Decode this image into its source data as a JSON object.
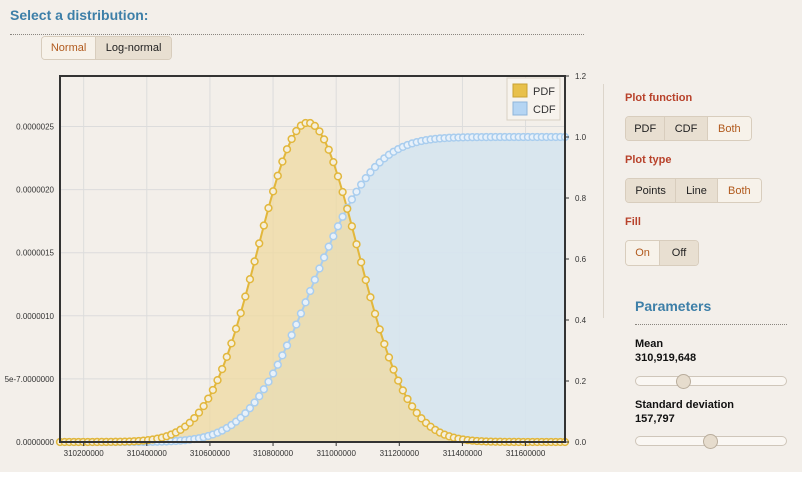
{
  "header": {
    "title": "Select a distribution:"
  },
  "distribution_tabs": [
    {
      "label": "Normal",
      "active": false
    },
    {
      "label": "Log-normal",
      "active": true
    }
  ],
  "controls": {
    "plot_function": {
      "label": "Plot function",
      "options": [
        {
          "label": "PDF",
          "active": true
        },
        {
          "label": "CDF",
          "active": true
        },
        {
          "label": "Both",
          "active": false
        }
      ]
    },
    "plot_type": {
      "label": "Plot type",
      "options": [
        {
          "label": "Points",
          "active": true
        },
        {
          "label": "Line",
          "active": true
        },
        {
          "label": "Both",
          "active": false
        }
      ]
    },
    "fill": {
      "label": "Fill",
      "options": [
        {
          "label": "On",
          "active": false
        },
        {
          "label": "Off",
          "active": true
        }
      ]
    }
  },
  "parameters": {
    "title": "Parameters",
    "mean": {
      "label": "Mean",
      "value_text": "310,919,648",
      "slider_fraction": 0.31
    },
    "std": {
      "label": "Standard deviation",
      "value_text": "157,797",
      "slider_fraction": 0.49
    }
  },
  "colors": {
    "pdf_line": "#e2b73c",
    "pdf_fill": "#efd9a0",
    "cdf_line": "#a9cdee",
    "cdf_fill": "#d6e4ee",
    "marker_fill": "#f5efdc",
    "cdf_marker_fill": "#e8f1fa",
    "axis": "#333333",
    "grid": "#dcdcdc"
  },
  "chart_data": {
    "type": "area",
    "title": "",
    "x_ticks": [
      310200000,
      310400000,
      310600000,
      310800000,
      311000000,
      311200000,
      311400000,
      311600000
    ],
    "x_tick_labels": [
      "310200000",
      "310400000",
      "310600000",
      "310800000",
      "311000000",
      "311200000",
      "311400000",
      "311600000"
    ],
    "xlim": [
      310125000,
      311725000
    ],
    "y_left": {
      "ticks": [
        0,
        5e-07,
        1e-06,
        1.5e-06,
        2e-06,
        2.5e-06
      ],
      "tick_labels": [
        "0.0000000",
        "5e-7.0000000",
        "0.0000010",
        "0.0000015",
        "0.0000020",
        "0.0000025"
      ],
      "lim": [
        0,
        2.9e-06
      ]
    },
    "y_right": {
      "ticks": [
        0,
        0.2,
        0.4,
        0.6,
        0.8,
        1.0,
        1.2
      ],
      "tick_labels": [
        "0.0",
        "0.2",
        "0.4",
        "0.6",
        "0.8",
        "1.0",
        "1.2"
      ],
      "lim": [
        0,
        1.2
      ]
    },
    "series": [
      {
        "name": "PDF",
        "axis": "left",
        "kind": "pdf",
        "mean": 310919648,
        "std": 157797,
        "peak_x": 310910000,
        "peak": 2.53e-06
      },
      {
        "name": "CDF",
        "axis": "right",
        "kind": "cdf",
        "mean": 310919648,
        "std": 157797
      }
    ],
    "sample_count": 110,
    "legend": {
      "position": "top-right",
      "entries": [
        "PDF",
        "CDF"
      ]
    }
  }
}
